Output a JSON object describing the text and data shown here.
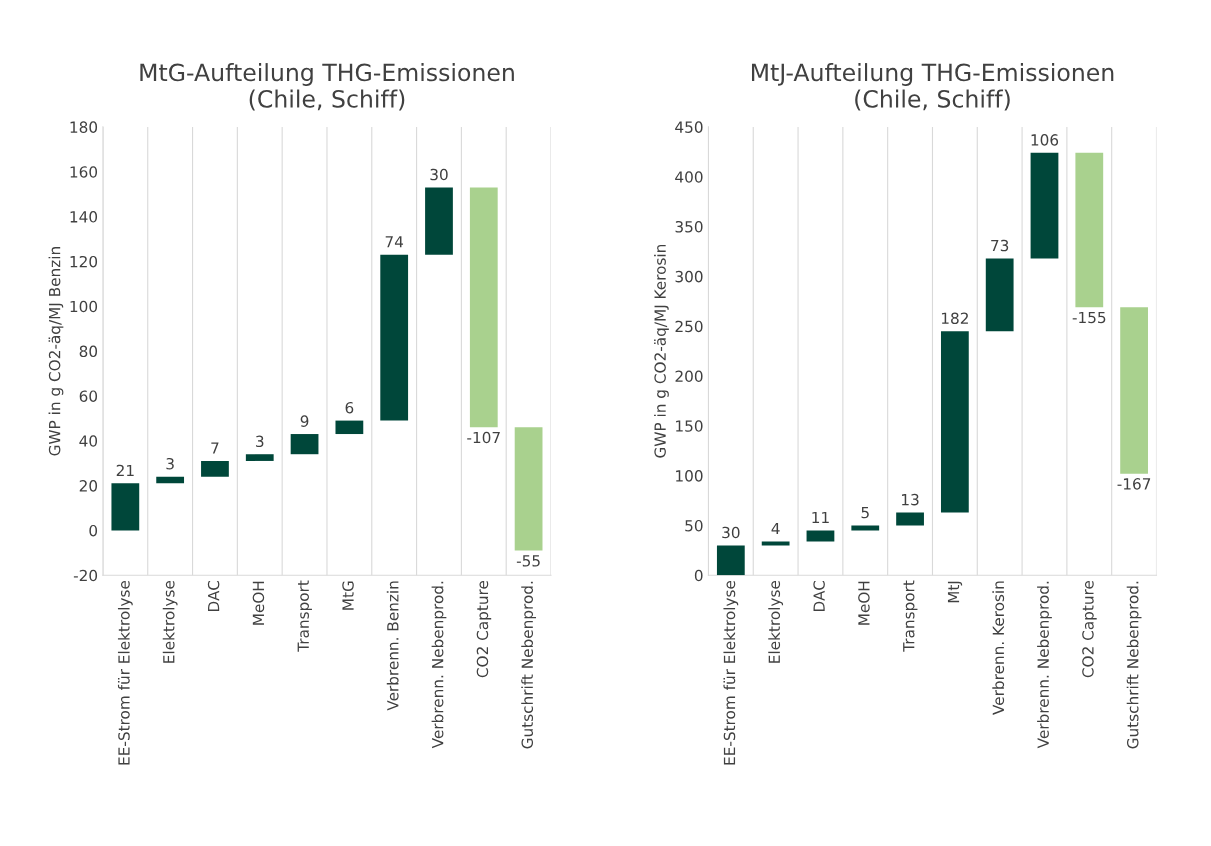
{
  "chart_data": [
    {
      "type": "bar",
      "title": "MtG-Aufteilung THG-Emissionen\n(Chile, Schiff)",
      "ylabel": "GWP in g CO2-äq/MJ Benzin",
      "categories": [
        "EE-Strom für Elektrolyse",
        "Elektrolyse",
        "DAC",
        "MeOH",
        "Transport",
        "MtG",
        "Verbrenn. Benzin",
        "Verbrenn. Nebenprod.",
        "CO2 Capture",
        "Gutschrift Nebenprod."
      ],
      "values": [
        21,
        3,
        7,
        3,
        9,
        6,
        74,
        30,
        -107,
        -55
      ],
      "base": [
        0,
        21,
        24,
        31,
        34,
        43,
        49,
        123,
        153,
        46
      ],
      "colors": [
        "#00473a",
        "#00473a",
        "#00473a",
        "#00473a",
        "#00473a",
        "#00473a",
        "#00473a",
        "#00473a",
        "#a9d18e",
        "#a9d18e"
      ],
      "ylim": [
        -20,
        180
      ],
      "yticks": [
        -20,
        0,
        20,
        40,
        60,
        80,
        100,
        120,
        140,
        160,
        180
      ],
      "grid": "x",
      "data_labels": true
    },
    {
      "type": "bar",
      "title": "MtJ-Aufteilung THG-Emissionen\n(Chile, Schiff)",
      "ylabel": "GWP in g CO2-äq/MJ Kerosin",
      "categories": [
        "EE-Strom für Elektrolyse",
        "Elektrolyse",
        "DAC",
        "MeOH",
        "Transport",
        "MtJ",
        "Verbrenn. Kerosin",
        "Verbrenn. Nebenprod.",
        "CO2 Capture",
        "Gutschrift Nebenprod."
      ],
      "values": [
        30,
        4,
        11,
        5,
        13,
        182,
        73,
        106,
        -155,
        -167
      ],
      "base": [
        0,
        30,
        34,
        45,
        50,
        63,
        245,
        318,
        424,
        269
      ],
      "colors": [
        "#00473a",
        "#00473a",
        "#00473a",
        "#00473a",
        "#00473a",
        "#00473a",
        "#00473a",
        "#00473a",
        "#a9d18e",
        "#a9d18e"
      ],
      "ylim": [
        0,
        450
      ],
      "yticks": [
        0,
        50,
        100,
        150,
        200,
        250,
        300,
        350,
        400,
        450
      ],
      "grid": "x",
      "data_labels": true
    }
  ]
}
